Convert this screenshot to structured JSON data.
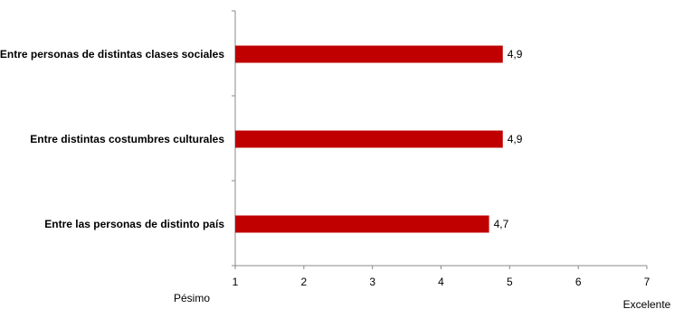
{
  "chart_data": {
    "type": "bar",
    "orientation": "horizontal",
    "categories": [
      "Entre personas de distintas clases sociales",
      "Entre distintas costumbres culturales",
      "Entre las personas de distinto país"
    ],
    "values": [
      4.9,
      4.9,
      4.7
    ],
    "value_labels": [
      "4,9",
      "4,9",
      "4,7"
    ],
    "xlim": [
      1,
      7
    ],
    "xticks": [
      "1",
      "2",
      "3",
      "4",
      "5",
      "6",
      "7"
    ],
    "scale_low_label": "Pésimo",
    "scale_high_label": "Excelente",
    "bar_color": "#c00000",
    "grid": false,
    "legend": "none"
  }
}
